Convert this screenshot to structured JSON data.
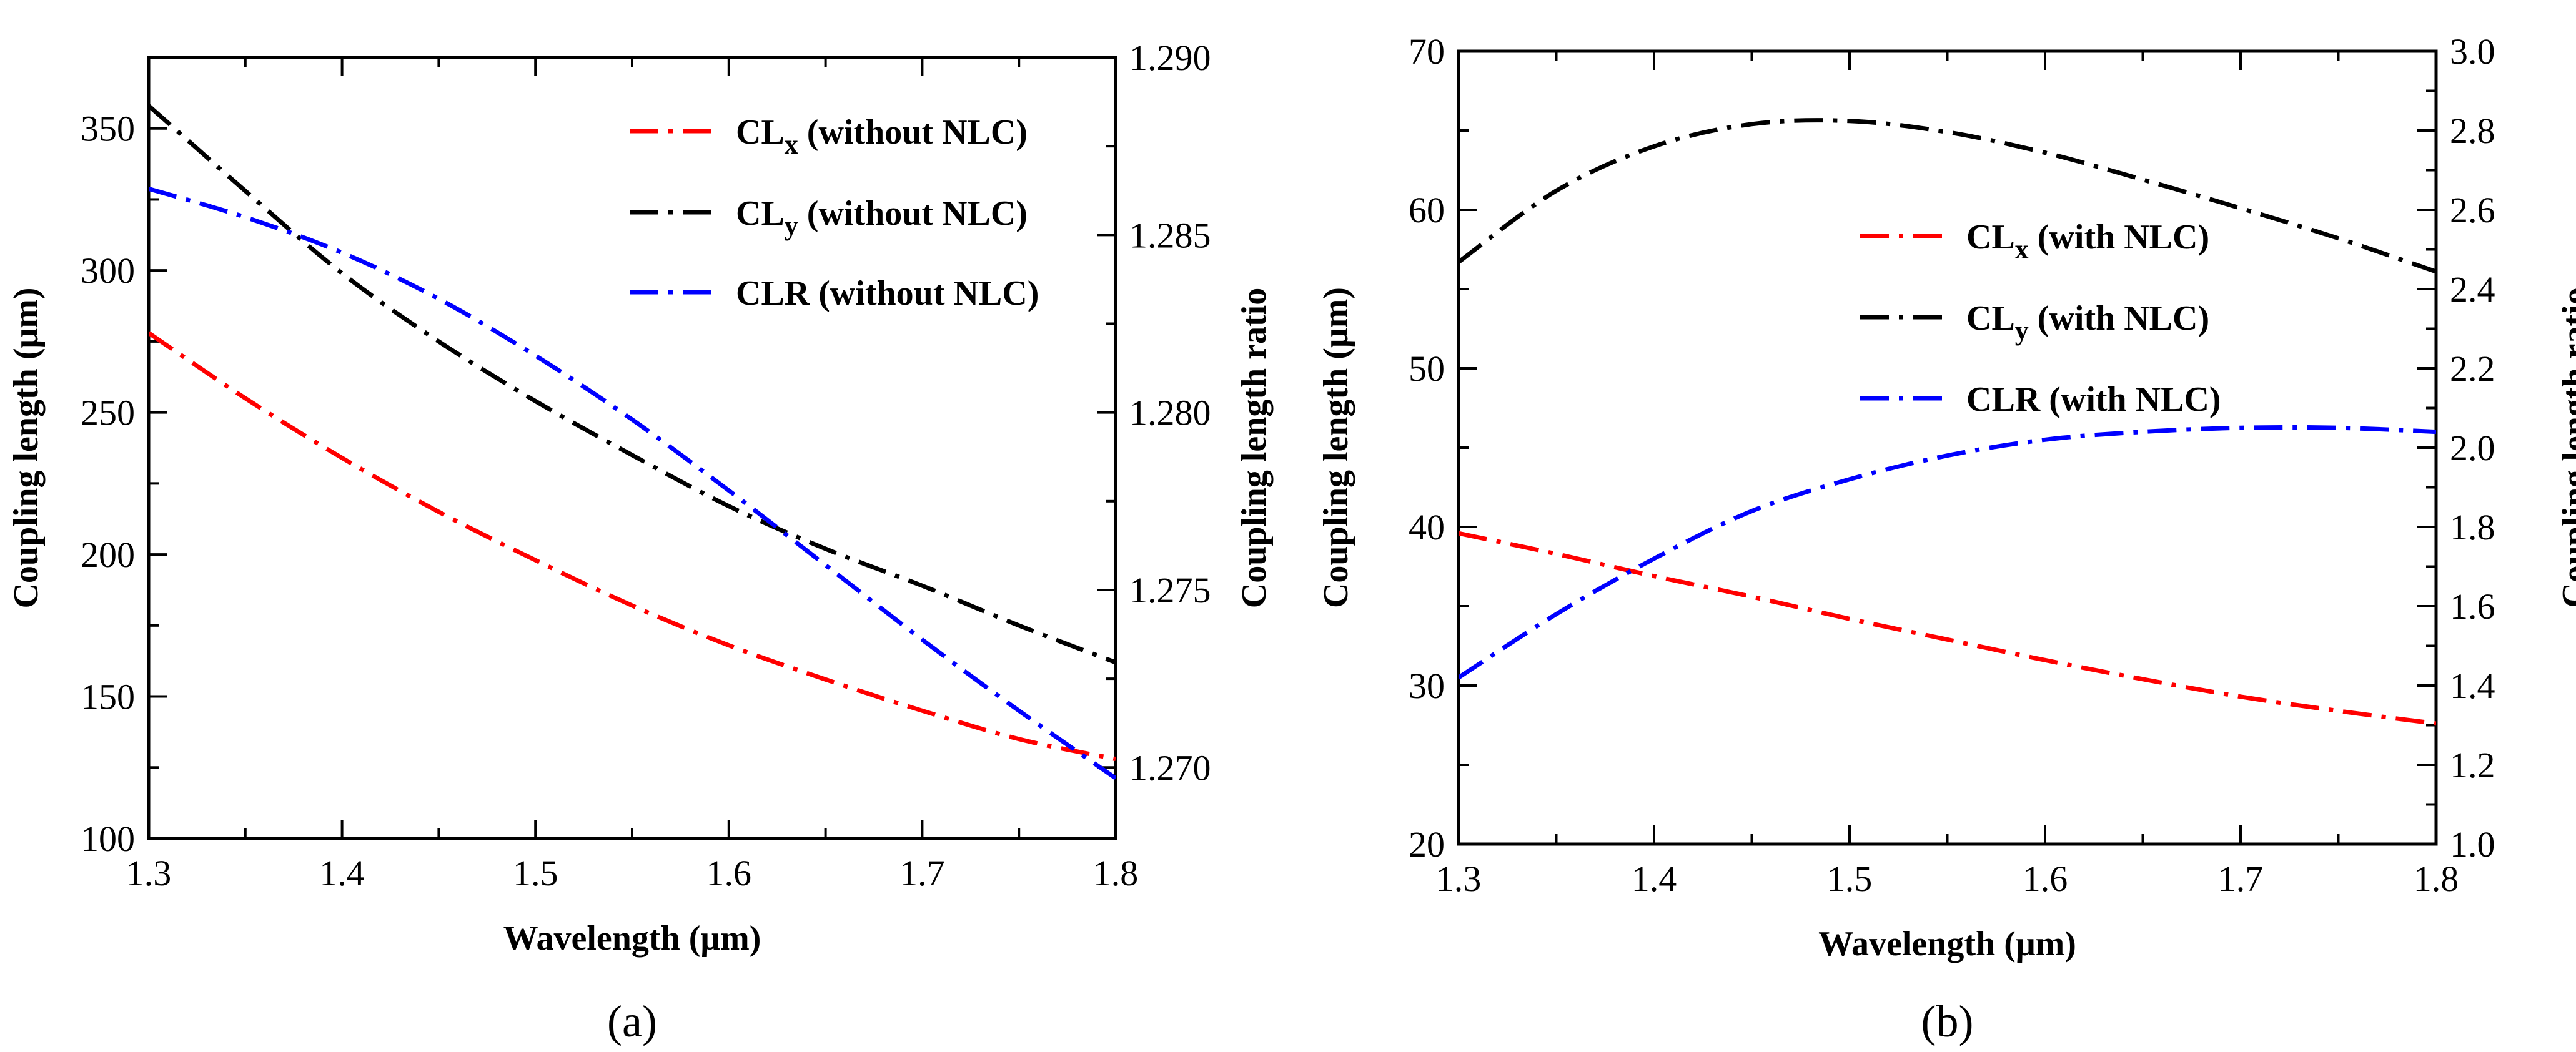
{
  "chart_data": [
    {
      "type": "line",
      "panel_label": "(a)",
      "xlabel": "Wavelength (μm)",
      "ylabel": "Coupling length (μm)",
      "y2label": "Coupling length ratio",
      "xlim": [
        1.3,
        1.8
      ],
      "ylim": [
        100,
        375
      ],
      "y2lim": [
        1.268,
        1.29
      ],
      "xticks": [
        "1.3",
        "1.4",
        "1.5",
        "1.6",
        "1.7",
        "1.8"
      ],
      "yticks": [
        "100",
        "150",
        "200",
        "250",
        "300",
        "350"
      ],
      "y2ticks": [
        "1.270",
        "1.275",
        "1.280",
        "1.285",
        "1.290"
      ],
      "legend_position": "top-right",
      "series": [
        {
          "name": "CLx (without NLC)",
          "legend_main": "CL",
          "legend_sub": "x",
          "legend_rest": " (without NLC)",
          "color": "#ff0000",
          "axis": "left",
          "x": [
            1.3,
            1.35,
            1.4,
            1.45,
            1.5,
            1.55,
            1.6,
            1.65,
            1.7,
            1.75,
            1.8
          ],
          "y": [
            278,
            255,
            234,
            215,
            198,
            182,
            168,
            156,
            145,
            135,
            128
          ]
        },
        {
          "name": "CLy (without NLC)",
          "legend_main": "CL",
          "legend_sub": "y",
          "legend_rest": " (without NLC)",
          "color": "#000000",
          "axis": "left",
          "x": [
            1.3,
            1.35,
            1.4,
            1.45,
            1.5,
            1.55,
            1.6,
            1.65,
            1.7,
            1.75,
            1.8
          ],
          "y": [
            358,
            328,
            299,
            275,
            254,
            235,
            217,
            202,
            189,
            175,
            162
          ]
        },
        {
          "name": "CLR (without NLC)",
          "legend_main": "CLR",
          "legend_sub": "",
          "legend_rest": " (without NLC)",
          "color": "#0000ff",
          "axis": "right",
          "x": [
            1.3,
            1.35,
            1.4,
            1.45,
            1.5,
            1.55,
            1.6,
            1.65,
            1.7,
            1.75,
            1.8
          ],
          "y": [
            1.2863,
            1.2855,
            1.2845,
            1.2832,
            1.2816,
            1.2798,
            1.2778,
            1.2757,
            1.2736,
            1.2716,
            1.2697
          ]
        }
      ]
    },
    {
      "type": "line",
      "panel_label": "(b)",
      "xlabel": "Wavelength (μm)",
      "ylabel": "Coupling length (μm)",
      "y2label": "Coupling length ratio",
      "xlim": [
        1.3,
        1.8
      ],
      "ylim": [
        20,
        70
      ],
      "y2lim": [
        1.0,
        3.0
      ],
      "xticks": [
        "1.3",
        "1.4",
        "1.5",
        "1.6",
        "1.7",
        "1.8"
      ],
      "yticks": [
        "20",
        "30",
        "40",
        "50",
        "60",
        "70"
      ],
      "y2ticks": [
        "1.0",
        "1.2",
        "1.4",
        "1.6",
        "1.8",
        "2.0",
        "2.2",
        "2.4",
        "2.6",
        "2.8",
        "3.0"
      ],
      "legend_position": "center-right",
      "series": [
        {
          "name": "CLx (with NLC)",
          "legend_main": "CL",
          "legend_sub": "x",
          "legend_rest": " (with NLC)",
          "color": "#ff0000",
          "axis": "left",
          "x": [
            1.3,
            1.35,
            1.4,
            1.45,
            1.5,
            1.55,
            1.6,
            1.65,
            1.7,
            1.75,
            1.8
          ],
          "y": [
            39.6,
            38.3,
            36.9,
            35.6,
            34.2,
            32.9,
            31.6,
            30.4,
            29.3,
            28.4,
            27.6
          ]
        },
        {
          "name": "CLy (with NLC)",
          "legend_main": "CL",
          "legend_sub": "y",
          "legend_rest": " (with NLC)",
          "color": "#000000",
          "axis": "left",
          "x": [
            1.3,
            1.35,
            1.4,
            1.45,
            1.5,
            1.55,
            1.6,
            1.65,
            1.7,
            1.75,
            1.8
          ],
          "y": [
            56.7,
            61.2,
            64.0,
            65.4,
            65.6,
            64.9,
            63.6,
            61.9,
            60.1,
            58.2,
            56.1
          ]
        },
        {
          "name": "CLR (with NLC)",
          "legend_main": "CLR",
          "legend_sub": "",
          "legend_rest": " (with NLC)",
          "color": "#0000ff",
          "axis": "right",
          "x": [
            1.3,
            1.35,
            1.4,
            1.45,
            1.5,
            1.55,
            1.6,
            1.65,
            1.7,
            1.75,
            1.8
          ],
          "y": [
            1.42,
            1.58,
            1.72,
            1.84,
            1.92,
            1.98,
            2.02,
            2.04,
            2.05,
            2.05,
            2.04
          ]
        }
      ]
    }
  ]
}
